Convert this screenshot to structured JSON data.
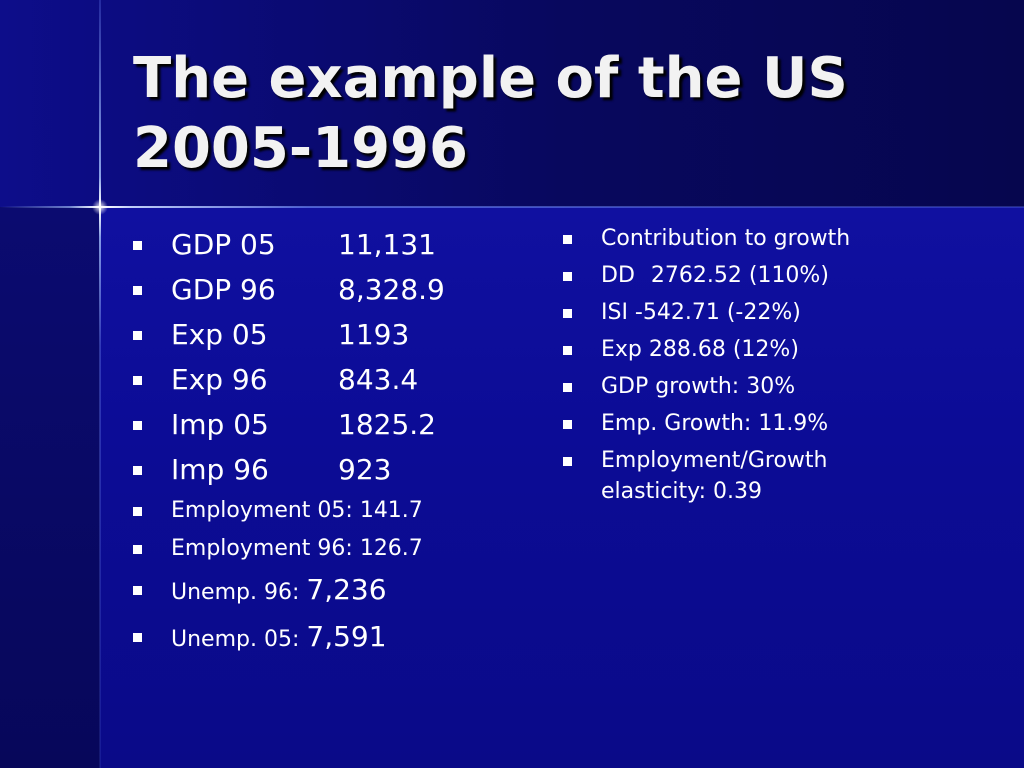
{
  "slide": {
    "title_line1": "The example of the US",
    "title_line2": "2005-1996"
  },
  "left_items": [
    {
      "label": "GDP 05",
      "value": "11,131"
    },
    {
      "label": "GDP 96",
      "value": "8,328.9"
    },
    {
      "label": "Exp 05",
      "value": "1193"
    },
    {
      "label": "Exp 96",
      "value": "843.4"
    },
    {
      "label": "Imp 05",
      "value": "1825.2"
    },
    {
      "label": "Imp 96",
      "value": "923"
    },
    {
      "text": "Employment 05: 141.7"
    },
    {
      "text": "Employment 96: 126.7"
    },
    {
      "label": "Unemp. 96:",
      "value": "7,236"
    },
    {
      "label": "Unemp. 05:",
      "value": "7,591"
    }
  ],
  "right_items": [
    {
      "text": "Contribution to growth"
    },
    {
      "label": "DD",
      "value": "2762.52 (110%)"
    },
    {
      "text": "ISI -542.71 (-22%)"
    },
    {
      "text": "Exp 288.68 (12%)"
    },
    {
      "text": "GDP growth: 30%"
    },
    {
      "text": "Emp. Growth: 11.9%"
    },
    {
      "line1": "Employment/Growth",
      "line2": "elasticity: 0.39"
    }
  ],
  "colors": {
    "background": "#0a0a7a",
    "text": "#ffffff",
    "title_text": "#f2f2f2"
  }
}
